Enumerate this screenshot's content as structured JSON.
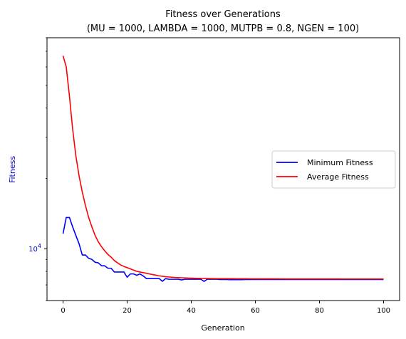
{
  "chart_data": {
    "type": "line",
    "title": "Fitness over Generations",
    "subtitle": "(MU = 1000, LAMBDA = 1000, MUTPB = 0.8, NGEN = 100)",
    "xlabel": "Generation",
    "ylabel": "Fitness",
    "ylabel_color": "#0000cc",
    "yscale": "log",
    "xlim": [
      -5,
      105
    ],
    "ylim": [
      6000,
      80000
    ],
    "x_ticks": [
      0,
      20,
      40,
      60,
      80,
      100
    ],
    "y_ticks": [
      {
        "value": 10000,
        "base": "10",
        "exp": "4"
      }
    ],
    "legend_position": "right",
    "grid": false,
    "x": [
      0,
      1,
      2,
      3,
      4,
      5,
      6,
      7,
      8,
      9,
      10,
      11,
      12,
      13,
      14,
      15,
      16,
      17,
      18,
      19,
      20,
      21,
      22,
      23,
      24,
      25,
      26,
      27,
      28,
      29,
      30,
      31,
      32,
      33,
      34,
      35,
      36,
      37,
      38,
      39,
      40,
      41,
      42,
      43,
      44,
      45,
      46,
      47,
      48,
      49,
      50,
      51,
      52,
      53,
      54,
      55,
      56,
      57,
      58,
      59,
      60,
      61,
      62,
      63,
      64,
      65,
      66,
      67,
      68,
      69,
      70,
      71,
      72,
      73,
      74,
      75,
      76,
      77,
      78,
      79,
      80,
      81,
      82,
      83,
      84,
      85,
      86,
      87,
      88,
      89,
      90,
      91,
      92,
      93,
      94,
      95,
      96,
      97,
      98,
      99,
      100
    ],
    "series": [
      {
        "name": "Minimum Fitness",
        "color": "#0000ff",
        "values": [
          11600,
          13600,
          13600,
          12400,
          11400,
          10500,
          9400,
          9400,
          9100,
          9000,
          8750,
          8700,
          8450,
          8450,
          8250,
          8250,
          7950,
          7950,
          7950,
          7950,
          7550,
          7800,
          7800,
          7700,
          7800,
          7650,
          7450,
          7450,
          7450,
          7450,
          7450,
          7250,
          7450,
          7400,
          7400,
          7400,
          7400,
          7350,
          7400,
          7400,
          7400,
          7400,
          7400,
          7400,
          7250,
          7400,
          7400,
          7400,
          7400,
          7380,
          7380,
          7380,
          7370,
          7370,
          7370,
          7370,
          7370,
          7380,
          7380,
          7380,
          7380,
          7380,
          7380,
          7380,
          7380,
          7380,
          7380,
          7380,
          7380,
          7380,
          7380,
          7380,
          7380,
          7380,
          7380,
          7380,
          7380,
          7380,
          7380,
          7380,
          7380,
          7380,
          7380,
          7380,
          7380,
          7380,
          7380,
          7380,
          7380,
          7380,
          7380,
          7380,
          7380,
          7380,
          7380,
          7380,
          7380,
          7380,
          7380,
          7380,
          7380
        ]
      },
      {
        "name": "Average Fitness",
        "color": "#ff0000",
        "values": [
          67000,
          60000,
          45000,
          32500,
          25000,
          20500,
          17500,
          15300,
          13600,
          12400,
          11400,
          10700,
          10200,
          9800,
          9450,
          9200,
          8900,
          8700,
          8520,
          8400,
          8300,
          8200,
          8100,
          8000,
          7950,
          7900,
          7850,
          7800,
          7750,
          7700,
          7650,
          7620,
          7590,
          7570,
          7550,
          7530,
          7520,
          7510,
          7500,
          7490,
          7480,
          7475,
          7470,
          7465,
          7460,
          7455,
          7450,
          7448,
          7446,
          7444,
          7442,
          7440,
          7440,
          7440,
          7438,
          7436,
          7435,
          7434,
          7433,
          7432,
          7431,
          7430,
          7430,
          7429,
          7428,
          7428,
          7427,
          7427,
          7426,
          7426,
          7425,
          7425,
          7425,
          7424,
          7424,
          7424,
          7423,
          7423,
          7423,
          7422,
          7422,
          7422,
          7422,
          7421,
          7421,
          7421,
          7421,
          7420,
          7420,
          7420,
          7420,
          7420,
          7420,
          7420,
          7420,
          7420,
          7420,
          7420,
          7420,
          7420,
          7420
        ]
      }
    ]
  }
}
